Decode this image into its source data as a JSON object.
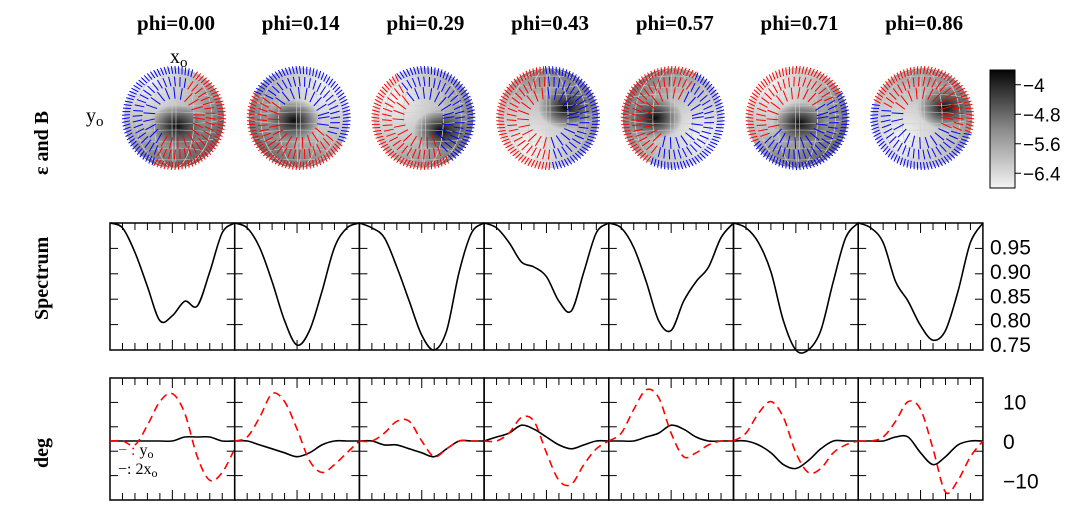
{
  "row_labels": [
    "ε and B",
    "Spectrum",
    "deg"
  ],
  "phases": [
    "phi=0.00",
    "phi=0.14",
    "phi=0.29",
    "phi=0.43",
    "phi=0.57",
    "phi=0.71",
    "phi=0.86"
  ],
  "axis_labels": {
    "x": "x",
    "x_sub": "o",
    "y": "y",
    "y_sub": "o"
  },
  "colorbar": {
    "ticks": [
      "−4",
      "−4.8",
      "−5.6",
      "−6.4"
    ],
    "values": [
      -4,
      -4.8,
      -5.6,
      -6.4
    ],
    "range": [
      -6.8,
      -3.6
    ]
  },
  "spectrum_ticks": [
    "0.95",
    "0.90",
    "0.85",
    "0.80",
    "0.75"
  ],
  "deg_ticks": [
    "10",
    "0",
    "−10"
  ],
  "legend": [
    {
      "sym": "−  :",
      "label": "y",
      "sub": "o",
      "color": "#ff0000",
      "dash": true
    },
    {
      "sym": "−:",
      "label": "2x",
      "sub": "o",
      "color": "#000000",
      "dash": false
    }
  ],
  "colors": {
    "red": "#ff0000",
    "blue": "#0000ff",
    "black": "#000000"
  },
  "chart_data": [
    {
      "type": "line",
      "title": "Spectrum",
      "ylabel": "Spectrum",
      "ylim": [
        0.74,
        1.0
      ],
      "x": [
        0,
        0.1,
        0.2,
        0.3,
        0.4,
        0.5,
        0.6,
        0.7,
        0.8,
        0.9,
        1.0
      ],
      "series": [
        {
          "values": [
            1.0,
            0.99,
            0.94,
            0.87,
            0.8,
            0.81,
            0.84,
            0.83,
            0.9,
            0.98,
            1.0
          ]
        },
        {
          "values": [
            1.0,
            0.99,
            0.95,
            0.88,
            0.8,
            0.75,
            0.78,
            0.86,
            0.95,
            0.99,
            1.0
          ]
        },
        {
          "values": [
            1.0,
            0.99,
            0.97,
            0.91,
            0.84,
            0.77,
            0.74,
            0.78,
            0.9,
            0.98,
            1.0
          ]
        },
        {
          "values": [
            1.0,
            0.99,
            0.96,
            0.92,
            0.91,
            0.89,
            0.84,
            0.82,
            0.9,
            0.98,
            1.0
          ]
        },
        {
          "values": [
            1.0,
            0.99,
            0.95,
            0.88,
            0.8,
            0.78,
            0.84,
            0.88,
            0.91,
            0.97,
            1.0
          ]
        },
        {
          "values": [
            1.0,
            0.99,
            0.96,
            0.9,
            0.8,
            0.74,
            0.74,
            0.78,
            0.88,
            0.97,
            1.0
          ]
        },
        {
          "values": [
            1.0,
            0.99,
            0.96,
            0.88,
            0.84,
            0.79,
            0.76,
            0.78,
            0.86,
            0.96,
            1.0
          ]
        }
      ]
    },
    {
      "type": "line",
      "title": "deg",
      "ylabel": "deg",
      "ylim": [
        -15,
        16
      ],
      "x": [
        0,
        0.1,
        0.2,
        0.3,
        0.4,
        0.5,
        0.6,
        0.7,
        0.8,
        0.9,
        1.0
      ],
      "series": [
        {
          "name": "y_o",
          "panels": [
            [
              0,
              0,
              -1,
              4,
              10,
              12,
              7,
              -4,
              -10,
              -8,
              -2
            ],
            [
              0,
              1,
              6,
              12,
              10,
              3,
              -5,
              -8,
              -6,
              -3,
              0
            ],
            [
              0,
              0,
              2,
              5,
              5,
              0,
              -4,
              -2,
              0,
              0,
              0
            ],
            [
              0,
              0,
              2,
              6,
              5,
              -3,
              -10,
              -11,
              -6,
              -2,
              0
            ],
            [
              0,
              2,
              8,
              13,
              11,
              2,
              -4,
              -3,
              -1,
              0,
              0
            ],
            [
              0,
              2,
              7,
              10,
              6,
              -3,
              -8,
              -7,
              -3,
              -1,
              0
            ],
            [
              0,
              0,
              1,
              5,
              10,
              8,
              -2,
              -13,
              -10,
              -4,
              0
            ]
          ]
        },
        {
          "name": "2x_o",
          "panels": [
            [
              0,
              0,
              0,
              0,
              0,
              0,
              1,
              1,
              1,
              0,
              0
            ],
            [
              0,
              0,
              -1,
              -2,
              -3,
              -4,
              -3,
              -1,
              0,
              0,
              0
            ],
            [
              0,
              0,
              -1,
              -1,
              -2,
              -3,
              -4,
              -2,
              0,
              0,
              0
            ],
            [
              0,
              1,
              2,
              4,
              3,
              1,
              -1,
              -2,
              -1,
              0,
              0
            ],
            [
              0,
              0,
              0,
              1,
              2,
              4,
              3,
              1,
              0,
              0,
              0
            ],
            [
              0,
              0,
              -1,
              -3,
              -6,
              -7,
              -5,
              -2,
              0,
              0,
              0
            ],
            [
              0,
              0,
              0,
              1,
              1,
              -3,
              -6,
              -4,
              -1,
              0,
              0
            ]
          ]
        }
      ]
    }
  ]
}
